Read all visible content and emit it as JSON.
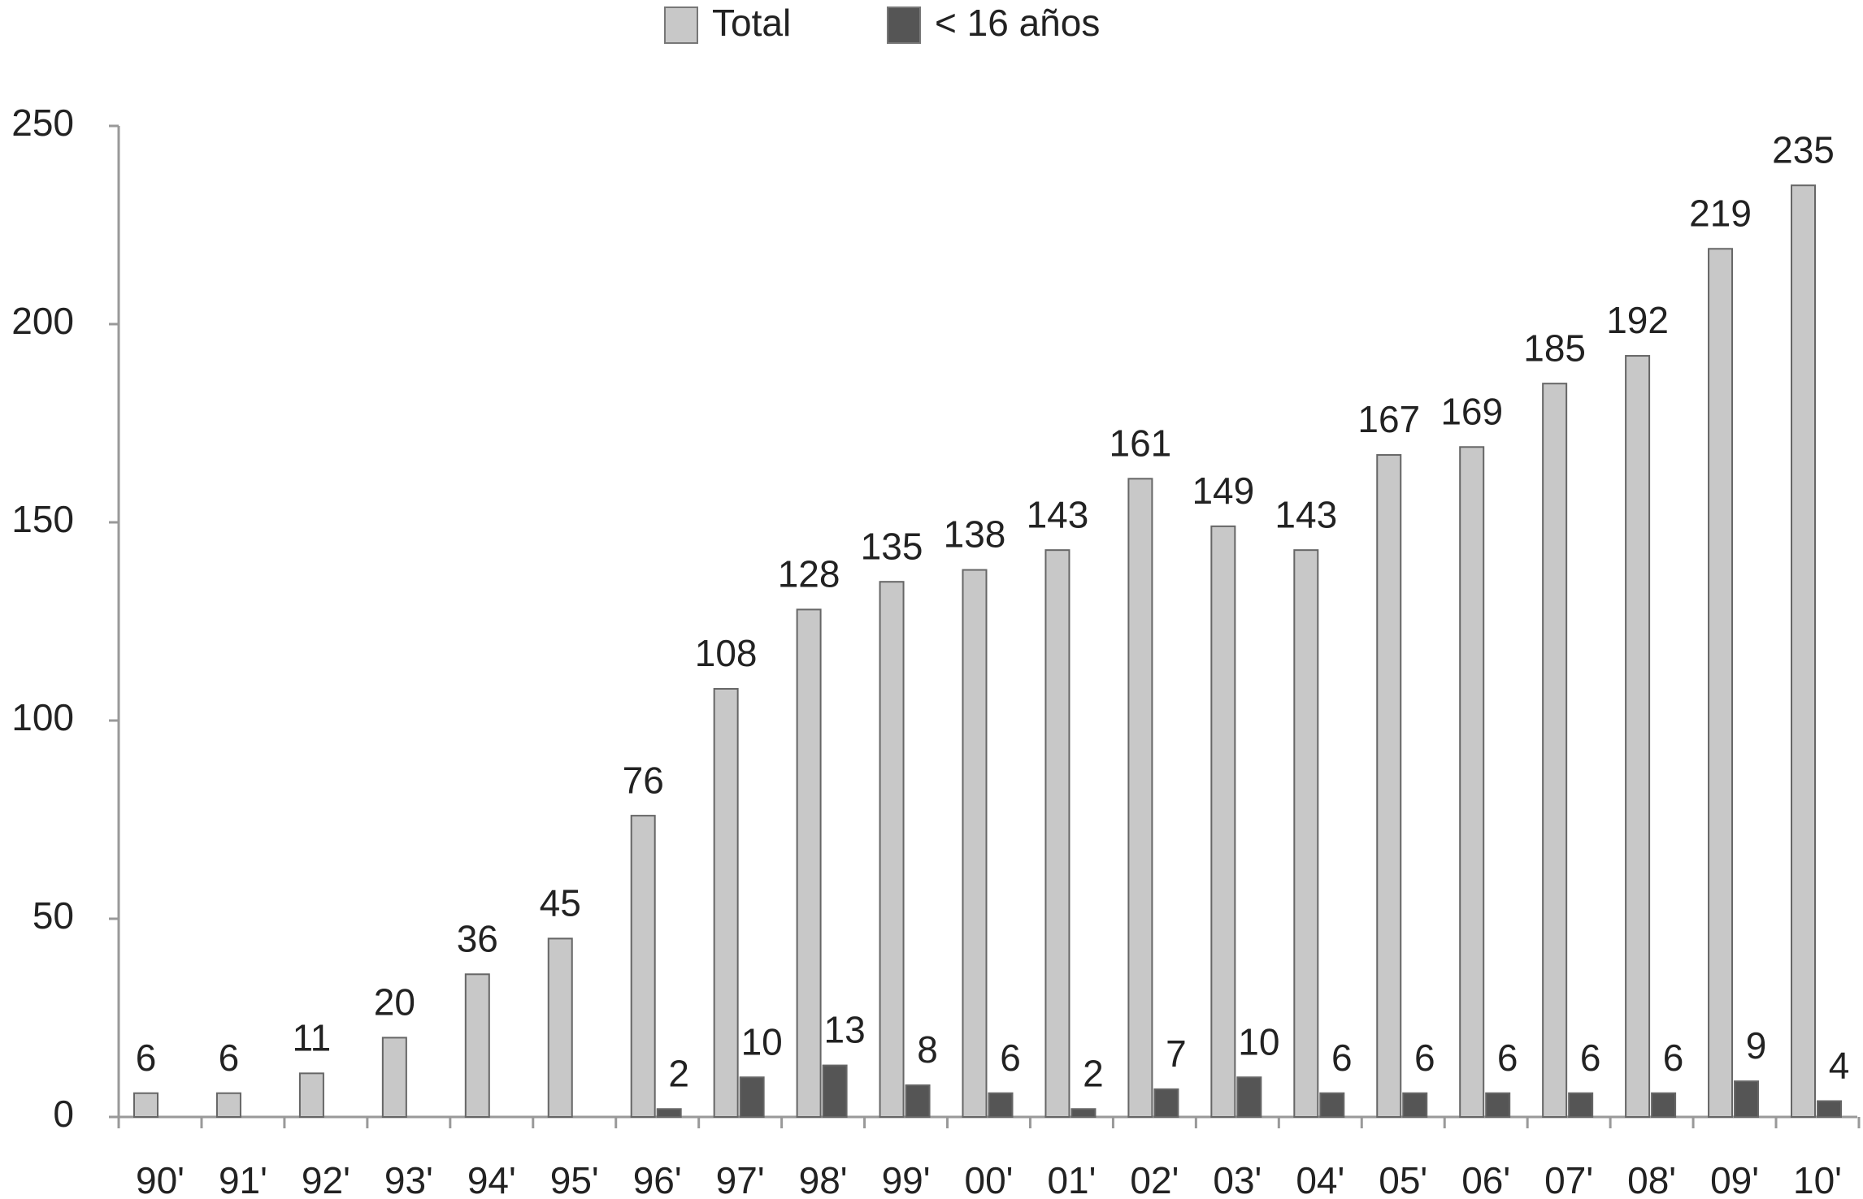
{
  "chart_data": {
    "type": "bar",
    "categories": [
      "90'",
      "91'",
      "92'",
      "93'",
      "94'",
      "95'",
      "96'",
      "97'",
      "98'",
      "99'",
      "00'",
      "01'",
      "02'",
      "03'",
      "04'",
      "05'",
      "06'",
      "07'",
      "08'",
      "09'",
      "10'"
    ],
    "series": [
      {
        "name": "Total",
        "color": "#c8c8c8",
        "values": [
          6,
          6,
          11,
          20,
          36,
          45,
          76,
          108,
          128,
          135,
          138,
          143,
          161,
          149,
          143,
          167,
          169,
          185,
          192,
          219,
          235
        ]
      },
      {
        "name": "< 16 años",
        "color": "#555555",
        "values": [
          null,
          null,
          null,
          null,
          null,
          null,
          2,
          10,
          13,
          8,
          6,
          2,
          7,
          10,
          6,
          6,
          6,
          6,
          6,
          9,
          4
        ]
      }
    ],
    "ylim": [
      0,
      250
    ],
    "yticks": [
      0,
      50,
      100,
      150,
      200,
      250
    ],
    "legend": "top"
  }
}
